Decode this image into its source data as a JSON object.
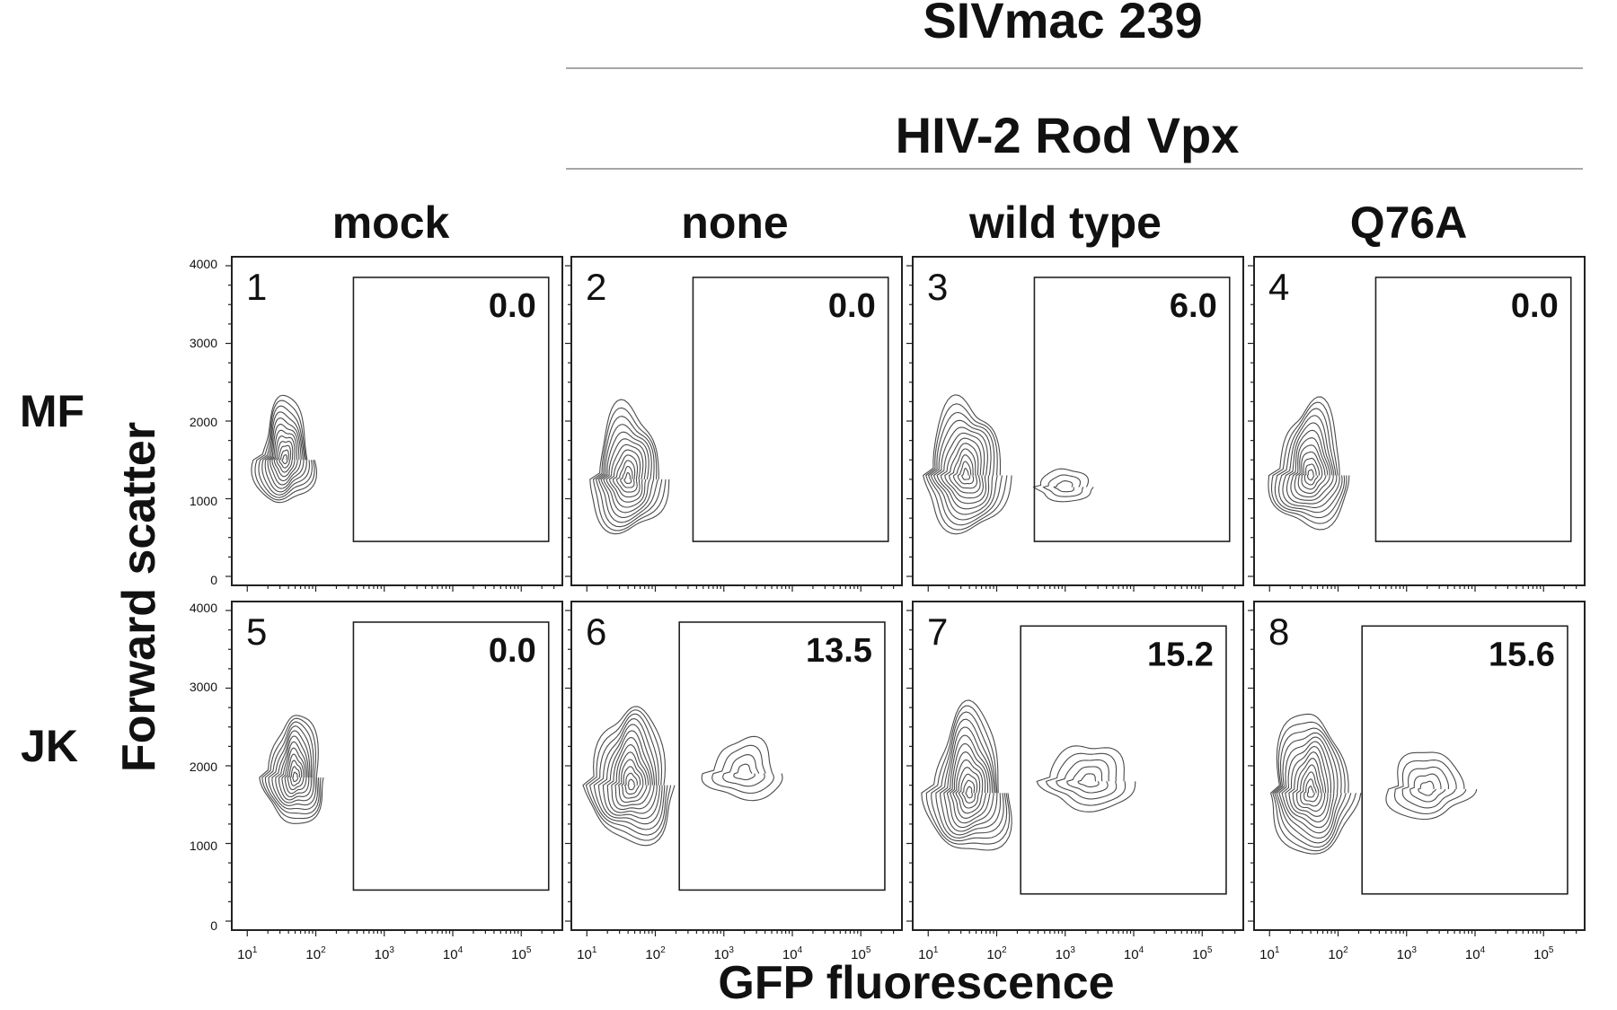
{
  "headers": {
    "top": "SIVmac 239",
    "sub": "HIV-2 Rod Vpx"
  },
  "column_titles": [
    "mock",
    "none",
    "wild type",
    "Q76A"
  ],
  "row_labels": [
    "MF",
    "JK"
  ],
  "x_axis_label": "GFP fluorescence",
  "y_axis_label": "Forward scatter",
  "y_ticks": [
    "0",
    "1000",
    "2000",
    "3000",
    "4000"
  ],
  "x_ticks": [
    {
      "base": "10",
      "exp": "1"
    },
    {
      "base": "10",
      "exp": "2"
    },
    {
      "base": "10",
      "exp": "3"
    },
    {
      "base": "10",
      "exp": "4"
    },
    {
      "base": "10",
      "exp": "5"
    }
  ],
  "colors": {
    "contour": "#4a4a4a",
    "frame": "#222222",
    "background": "#ffffff"
  },
  "chart_data": {
    "type": "contour",
    "xscale": "log",
    "xlim_log10": [
      0.8,
      5.6
    ],
    "ylim": [
      0,
      4000
    ],
    "grid": false,
    "panels": [
      {
        "number": "1",
        "row": "MF",
        "column": "mock",
        "gfp_positive_percent": "0.0",
        "gate": {
          "gfp_min_log10": 2.55,
          "gfp_max_log10": 5.4,
          "fsc_min": 450,
          "fsc_max": 3850
        },
        "populations": [
          {
            "log_gfp_center": 1.55,
            "fsc_center": 1500,
            "log_gfp_spread": 0.45,
            "fsc_spread": 1250,
            "levels": 12
          }
        ]
      },
      {
        "number": "2",
        "row": "MF",
        "column": "none",
        "gfp_positive_percent": "0.0",
        "gate": {
          "gfp_min_log10": 2.55,
          "gfp_max_log10": 5.4,
          "fsc_min": 450,
          "fsc_max": 3850
        },
        "populations": [
          {
            "log_gfp_center": 1.6,
            "fsc_center": 1250,
            "log_gfp_spread": 0.6,
            "fsc_spread": 1450,
            "levels": 12
          }
        ]
      },
      {
        "number": "3",
        "row": "MF",
        "column": "wild type",
        "gfp_positive_percent": "6.0",
        "gate": {
          "gfp_min_log10": 2.55,
          "gfp_max_log10": 5.4,
          "fsc_min": 450,
          "fsc_max": 3850
        },
        "populations": [
          {
            "log_gfp_center": 1.55,
            "fsc_center": 1300,
            "log_gfp_spread": 0.65,
            "fsc_spread": 1550,
            "levels": 12
          },
          {
            "log_gfp_center": 3.0,
            "fsc_center": 1150,
            "log_gfp_spread": 0.45,
            "fsc_spread": 380,
            "levels": 3
          }
        ]
      },
      {
        "number": "4",
        "row": "MF",
        "column": "Q76A",
        "gfp_positive_percent": "0.0",
        "gate": {
          "gfp_min_log10": 2.55,
          "gfp_max_log10": 5.4,
          "fsc_min": 450,
          "fsc_max": 3850
        },
        "populations": [
          {
            "log_gfp_center": 1.6,
            "fsc_center": 1300,
            "log_gfp_spread": 0.6,
            "fsc_spread": 1450,
            "levels": 12
          }
        ]
      },
      {
        "number": "5",
        "row": "JK",
        "column": "mock",
        "gfp_positive_percent": "0.0",
        "gate": {
          "gfp_min_log10": 2.55,
          "gfp_max_log10": 5.4,
          "fsc_min": 400,
          "fsc_max": 3850
        },
        "populations": [
          {
            "log_gfp_center": 1.7,
            "fsc_center": 1850,
            "log_gfp_spread": 0.45,
            "fsc_spread": 1350,
            "levels": 12
          }
        ]
      },
      {
        "number": "6",
        "row": "JK",
        "column": "none",
        "gfp_positive_percent": "13.5",
        "gate": {
          "gfp_min_log10": 2.35,
          "gfp_max_log10": 5.35,
          "fsc_min": 400,
          "fsc_max": 3850
        },
        "populations": [
          {
            "log_gfp_center": 1.65,
            "fsc_center": 1750,
            "log_gfp_spread": 0.65,
            "fsc_spread": 1650,
            "levels": 13
          },
          {
            "log_gfp_center": 3.3,
            "fsc_center": 1900,
            "log_gfp_spread": 0.6,
            "fsc_spread": 700,
            "levels": 4
          }
        ]
      },
      {
        "number": "7",
        "row": "JK",
        "column": "wild type",
        "gfp_positive_percent": "15.2",
        "gate": {
          "gfp_min_log10": 2.35,
          "gfp_max_log10": 5.35,
          "fsc_min": 350,
          "fsc_max": 3800
        },
        "populations": [
          {
            "log_gfp_center": 1.6,
            "fsc_center": 1650,
            "log_gfp_spread": 0.65,
            "fsc_spread": 1700,
            "levels": 13
          },
          {
            "log_gfp_center": 3.35,
            "fsc_center": 1800,
            "log_gfp_spread": 0.7,
            "fsc_spread": 800,
            "levels": 5
          }
        ]
      },
      {
        "number": "8",
        "row": "JK",
        "column": "Q76A",
        "gfp_positive_percent": "15.6",
        "gate": {
          "gfp_min_log10": 2.35,
          "gfp_max_log10": 5.35,
          "fsc_min": 350,
          "fsc_max": 3800
        },
        "populations": [
          {
            "log_gfp_center": 1.6,
            "fsc_center": 1650,
            "log_gfp_spread": 0.65,
            "fsc_spread": 1700,
            "levels": 13
          },
          {
            "log_gfp_center": 3.3,
            "fsc_center": 1700,
            "log_gfp_spread": 0.65,
            "fsc_spread": 800,
            "levels": 5
          }
        ]
      }
    ]
  }
}
